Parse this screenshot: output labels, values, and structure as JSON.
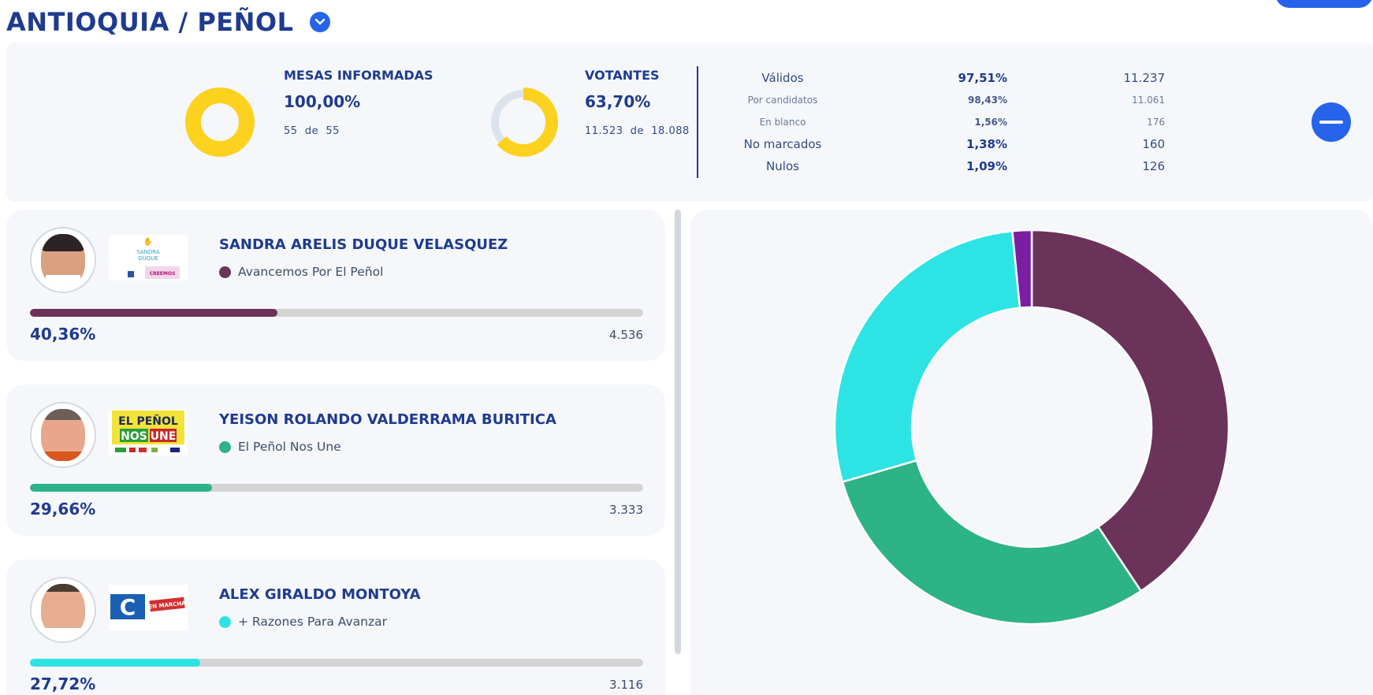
{
  "header": {
    "title": "ANTIOQUIA / PEÑOL"
  },
  "stats": {
    "mesas": {
      "label": "MESAS INFORMADAS",
      "pct": "100,00%",
      "count": "55",
      "of_word": "de",
      "total": "55",
      "fraction": 1.0
    },
    "votantes": {
      "label": "VOTANTES",
      "pct": "63,70%",
      "count": "11.523",
      "of_word": "de",
      "total": "18.088",
      "fraction": 0.637
    },
    "breakdown": [
      {
        "label": "Válidos",
        "pct": "97,51%",
        "count": "11.237",
        "size": "big"
      },
      {
        "label": "Por candidatos",
        "pct": "98,43%",
        "count": "11.061",
        "size": "small"
      },
      {
        "label": "En blanco",
        "pct": "1,56%",
        "count": "176",
        "size": "small"
      },
      {
        "label": "No marcados",
        "pct": "1,38%",
        "count": "160",
        "size": "big"
      },
      {
        "label": "Nulos",
        "pct": "1,09%",
        "count": "126",
        "size": "big"
      }
    ]
  },
  "candidates": [
    {
      "name": "SANDRA ARELIS DUQUE VELASQUEZ",
      "party": "Avancemos Por El Peñol",
      "pct": "40,36%",
      "votes": "4.536",
      "share": 0.4036,
      "color": "#6b3359",
      "logo_text": {
        "line1": "SANDRA",
        "line2": "DUQUE",
        "line3": "CREEMOS"
      }
    },
    {
      "name": "YEISON ROLANDO VALDERRAMA BURITICA",
      "party": "El Peñol Nos Une",
      "pct": "29,66%",
      "votes": "3.333",
      "share": 0.2966,
      "color": "#2db386",
      "logo_text": {
        "line1": "EL PEÑOL",
        "line2": "NOS",
        "line3": "UNE"
      }
    },
    {
      "name": "ALEX GIRALDO MONTOYA",
      "party": "+ Razones Para Avanzar",
      "pct": "27,72%",
      "votes": "3.116",
      "share": 0.2772,
      "color": "#2ee3e3",
      "logo_text": {
        "line1": "C",
        "line2": "EN MARCHA"
      }
    }
  ],
  "chart_data": {
    "type": "pie",
    "donut": true,
    "slices": [
      {
        "label": "Avancemos Por El Peñol",
        "value": 40.36,
        "color": "#6b3359"
      },
      {
        "label": "El Peñol Nos Une",
        "value": 29.66,
        "color": "#2db386"
      },
      {
        "label": "+ Razones Para Avanzar",
        "value": 27.72,
        "color": "#2ee3e3"
      },
      {
        "label": "En blanco",
        "value": 1.56,
        "color": "#7a1fa2"
      }
    ]
  },
  "colors": {
    "accent": "#2563eb",
    "title": "#1f3b8f",
    "gauge_fill": "#fdd21f",
    "gauge_track": "#dde3ec"
  },
  "icons": {
    "title_toggle": "chevron-down-icon",
    "collapse": "minus-icon"
  }
}
